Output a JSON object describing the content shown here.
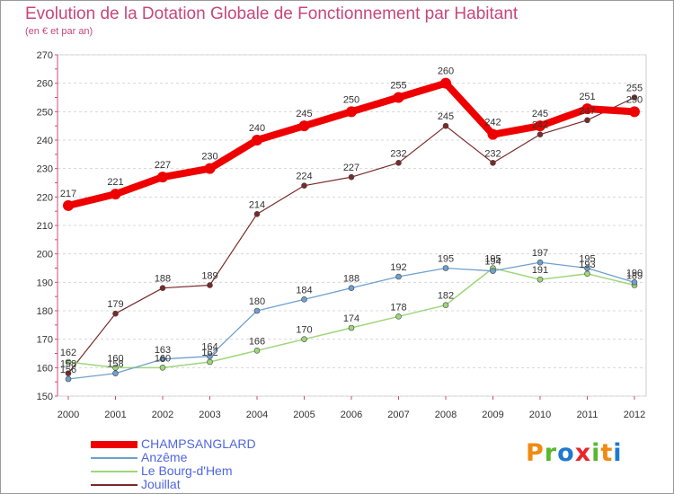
{
  "header": {
    "title": "Evolution de la Dotation Globale de Fonctionnement par Habitant",
    "subtitle": "(en € et par an)"
  },
  "logo": {
    "text": "Proxiti",
    "colors": [
      "#f08a12",
      "#58b830",
      "#1e78d0",
      "#e8262c",
      "#58b830",
      "#f08a12",
      "#1e78d0"
    ]
  },
  "chart_data": {
    "type": "line",
    "title": "Evolution de la Dotation Globale de Fonctionnement par Habitant",
    "subtitle": "(en € et par an)",
    "xlabel": "",
    "ylabel": "",
    "x": [
      "2000",
      "2001",
      "2002",
      "2003",
      "2004",
      "2005",
      "2006",
      "2007",
      "2008",
      "2009",
      "2010",
      "2011",
      "2012"
    ],
    "ylim": [
      150,
      270
    ],
    "yticks": [
      150,
      160,
      170,
      180,
      190,
      200,
      210,
      220,
      230,
      240,
      250,
      260,
      270
    ],
    "grid": "horizontal dashed",
    "legend_position": "bottom-left",
    "series": [
      {
        "name": "CHAMPSANGLARD",
        "color": "#ee0000",
        "values": [
          217,
          221,
          227,
          230,
          240,
          245,
          250,
          255,
          260,
          242,
          245,
          251,
          250
        ]
      },
      {
        "name": "Anzême",
        "color": "#6ea0d0",
        "values": [
          156,
          158,
          163,
          164,
          180,
          184,
          188,
          192,
          195,
          194,
          197,
          195,
          190
        ]
      },
      {
        "name": "Le Bourg-d'Hem",
        "color": "#9ed67a",
        "values": [
          162,
          160,
          160,
          162,
          166,
          170,
          174,
          178,
          182,
          195,
          191,
          193,
          189
        ]
      },
      {
        "name": "Jouillat",
        "color": "#7a2a2a",
        "values": [
          158,
          179,
          188,
          189,
          214,
          224,
          227,
          232,
          245,
          232,
          242,
          247,
          255
        ]
      }
    ],
    "data_labels": [
      {
        "series": 0,
        "values": [
          "217",
          "221",
          "227",
          "230",
          "240",
          "245",
          "250",
          "255",
          "260",
          "242",
          "245",
          "251",
          "250"
        ]
      },
      {
        "series": 1,
        "values": [
          "156",
          "158",
          "163",
          "164",
          "180",
          "184",
          "188",
          "192",
          "195",
          "194",
          "197",
          "195",
          "190"
        ]
      },
      {
        "series": 2,
        "values": [
          "162",
          "160",
          "160",
          "162",
          "166",
          "170",
          "174",
          "178",
          "182",
          "195",
          "191",
          "193",
          "189"
        ]
      },
      {
        "series": 3,
        "values": [
          "158",
          "179",
          "188",
          "189",
          "214",
          "224",
          "227",
          "232",
          "245",
          "232",
          "242",
          "247",
          "255"
        ]
      }
    ]
  }
}
